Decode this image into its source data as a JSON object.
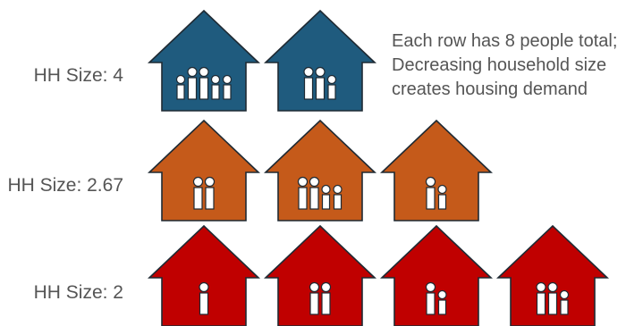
{
  "note": {
    "line1": "Each row has 8 people total;",
    "line2": "Decreasing household size",
    "line3": "creates housing demand"
  },
  "rows": [
    {
      "label": "HH Size: 4",
      "color": "#1f5b7e",
      "houses": [
        {
          "people": [
            "small",
            "tall",
            "tall",
            "small",
            "small"
          ]
        },
        {
          "people": [
            "tall",
            "tall",
            "small"
          ]
        }
      ]
    },
    {
      "label": "HH Size: 2.67",
      "color": "#c55a1a",
      "houses": [
        {
          "people": [
            "tall",
            "tall"
          ]
        },
        {
          "people": [
            "tall",
            "tall",
            "small",
            "small"
          ]
        },
        {
          "people": [
            "tall",
            "small"
          ]
        }
      ]
    },
    {
      "label": "HH Size: 2",
      "color": "#c00000",
      "houses": [
        {
          "people": [
            "tall"
          ]
        },
        {
          "people": [
            "tall",
            "tall"
          ]
        },
        {
          "people": [
            "tall",
            "small"
          ]
        },
        {
          "people": [
            "tall",
            "tall",
            "small"
          ]
        }
      ]
    }
  ],
  "colors": {
    "outline": "#1f2a33",
    "figure_fill": "#ffffff",
    "text": "#555555"
  },
  "icons": {
    "house": "house-icon",
    "person": "person-icon"
  }
}
